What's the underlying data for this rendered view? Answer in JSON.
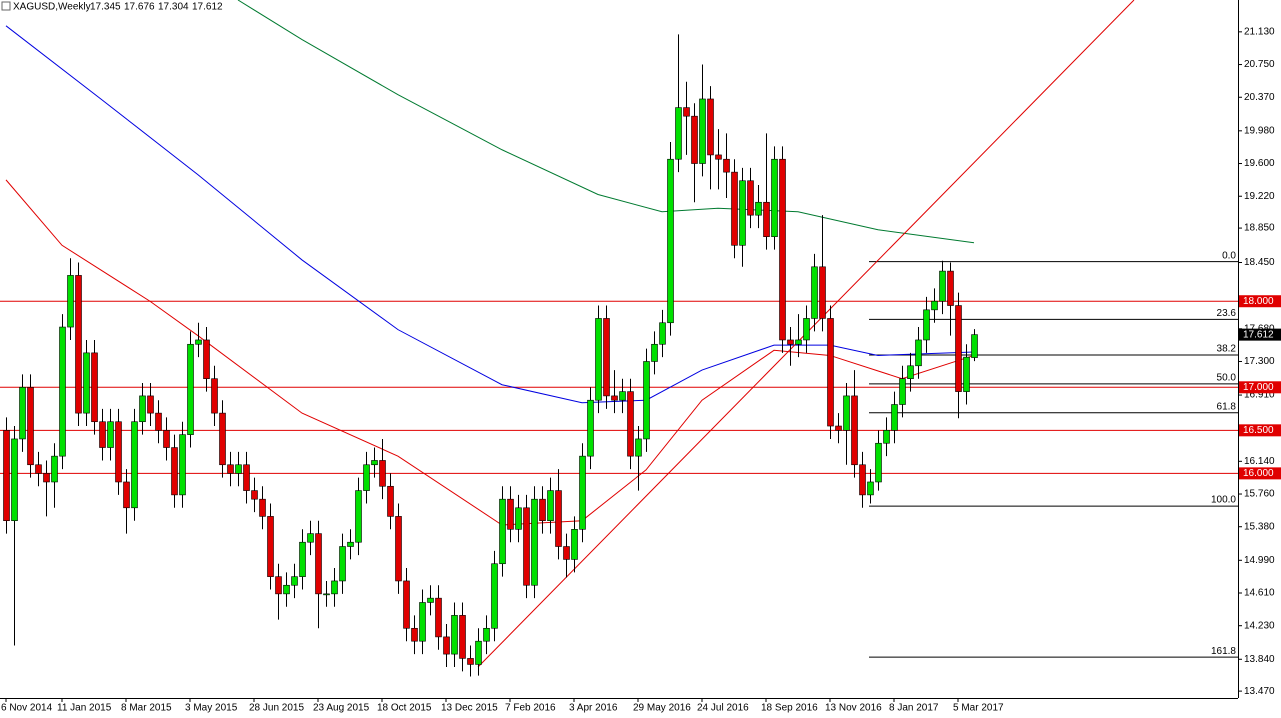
{
  "chart_data": {
    "type": "candlestick",
    "title": "XAGUSD,Weekly",
    "categories": [
      "6 Nov 2014",
      null,
      null,
      null,
      null,
      null,
      null,
      "11 Jan 2015",
      null,
      null,
      null,
      null,
      null,
      null,
      null,
      "8 Mar 2015",
      null,
      null,
      null,
      null,
      null,
      null,
      null,
      "3 May 2015",
      null,
      null,
      null,
      null,
      null,
      null,
      null,
      "28 Jun 2015",
      null,
      null,
      null,
      null,
      null,
      null,
      null,
      "23 Aug 2015",
      null,
      null,
      null,
      null,
      null,
      null,
      null,
      "18 Oct 2015",
      null,
      null,
      null,
      null,
      null,
      null,
      null,
      "13 Dec 2015",
      null,
      null,
      null,
      null,
      null,
      null,
      null,
      "7 Feb 2016",
      null,
      null,
      null,
      null,
      null,
      null,
      null,
      "3 Apr 2016",
      null,
      null,
      null,
      null,
      null,
      null,
      null,
      "29 May 2016",
      null,
      null,
      null,
      null,
      null,
      null,
      null,
      "24 Jul 2016",
      null,
      null,
      null,
      null,
      null,
      null,
      null,
      "18 Sep 2016",
      null,
      null,
      null,
      null,
      null,
      null,
      null,
      "13 Nov 2016",
      null,
      null,
      null,
      null,
      null,
      null,
      null,
      "8 Jan 2017",
      null,
      null,
      null,
      null,
      null,
      null,
      null,
      "5 Mar 2017",
      null,
      null
    ],
    "open": [
      16.5,
      15.45,
      16.4,
      17.0,
      16.1,
      16.0,
      15.9,
      16.2,
      17.7,
      18.3,
      16.7,
      17.4,
      16.6,
      16.3,
      16.6,
      15.9,
      15.6,
      16.6,
      16.9,
      16.7,
      16.5,
      16.3,
      15.75,
      16.45,
      17.5,
      17.55,
      17.1,
      16.7,
      16.1,
      16.0,
      16.1,
      15.8,
      15.7,
      15.5,
      14.8,
      14.6,
      14.7,
      14.8,
      15.2,
      15.3,
      14.6,
      14.6,
      14.75,
      15.15,
      15.2,
      15.8,
      16.1,
      16.15,
      15.85,
      15.5,
      14.75,
      14.2,
      14.05,
      14.5,
      14.55,
      14.1,
      13.9,
      14.35,
      13.85,
      13.78,
      14.05,
      14.2,
      14.95,
      15.7,
      15.35,
      15.6,
      14.7,
      15.7,
      15.45,
      15.8,
      15.15,
      15.0,
      15.35,
      16.2,
      16.85,
      17.8,
      16.9,
      16.85,
      16.95,
      16.2,
      16.4,
      17.3,
      17.5,
      17.75,
      19.65,
      20.25,
      20.15,
      19.6,
      20.35,
      19.7,
      19.65,
      19.5,
      18.65,
      19.4,
      19.0,
      19.15,
      18.75,
      19.65,
      17.55,
      17.5,
      17.55,
      17.8,
      18.4,
      17.8,
      16.55,
      16.5,
      16.9,
      16.1,
      15.75,
      15.9,
      16.35,
      16.5,
      16.8,
      17.1,
      17.25,
      17.55,
      17.9,
      18.0,
      18.35,
      17.95,
      16.95,
      17.345
    ],
    "high": [
      16.65,
      16.55,
      17.15,
      17.15,
      16.25,
      16.15,
      16.35,
      17.85,
      18.5,
      18.45,
      17.55,
      17.55,
      16.75,
      16.75,
      16.75,
      16.05,
      16.75,
      17.05,
      17.05,
      16.85,
      16.65,
      16.45,
      16.6,
      17.65,
      17.75,
      17.7,
      17.25,
      16.85,
      16.25,
      16.25,
      16.25,
      15.95,
      15.85,
      15.65,
      14.95,
      14.85,
      14.95,
      15.35,
      15.45,
      15.45,
      14.75,
      14.9,
      15.3,
      15.35,
      15.95,
      16.25,
      16.3,
      16.4,
      16.0,
      15.65,
      14.9,
      14.35,
      14.65,
      14.7,
      14.7,
      14.25,
      14.5,
      14.5,
      14.0,
      14.2,
      14.35,
      15.1,
      15.85,
      15.85,
      15.75,
      15.75,
      15.85,
      15.85,
      15.95,
      16.05,
      15.3,
      15.5,
      16.35,
      17.0,
      17.95,
      17.95,
      17.2,
      17.1,
      17.1,
      16.55,
      17.45,
      17.65,
      17.9,
      19.85,
      21.1,
      20.55,
      20.3,
      20.75,
      20.5,
      20.0,
      19.95,
      19.65,
      19.55,
      19.55,
      19.35,
      19.95,
      19.8,
      19.8,
      17.7,
      17.85,
      17.95,
      18.55,
      19.0,
      17.95,
      16.7,
      17.05,
      17.2,
      16.25,
      16.05,
      16.5,
      16.65,
      16.95,
      17.25,
      17.4,
      17.7,
      18.05,
      18.15,
      18.47,
      18.45,
      18.1,
      17.5,
      17.676
    ],
    "low": [
      15.3,
      14.0,
      16.25,
      15.95,
      15.85,
      15.5,
      15.6,
      16.05,
      17.55,
      16.55,
      16.55,
      16.45,
      16.15,
      16.15,
      15.75,
      15.3,
      15.45,
      16.45,
      16.55,
      16.35,
      16.15,
      15.6,
      15.6,
      16.3,
      17.35,
      16.95,
      16.55,
      15.95,
      15.85,
      15.85,
      15.65,
      15.55,
      15.35,
      14.65,
      14.3,
      14.45,
      14.55,
      14.65,
      15.05,
      14.2,
      14.45,
      14.45,
      14.6,
      15.0,
      15.05,
      15.65,
      15.95,
      15.7,
      15.35,
      14.6,
      14.05,
      13.9,
      13.9,
      14.35,
      13.95,
      13.75,
      13.75,
      13.7,
      13.64,
      13.65,
      13.9,
      14.05,
      14.8,
      15.2,
      15.2,
      14.55,
      14.55,
      15.3,
      15.3,
      15.0,
      14.79,
      14.85,
      15.2,
      16.05,
      16.7,
      16.75,
      16.7,
      16.7,
      16.05,
      15.8,
      16.25,
      17.15,
      17.35,
      17.6,
      19.5,
      19.7,
      19.15,
      19.45,
      19.3,
      19.3,
      19.2,
      18.5,
      18.4,
      18.85,
      18.85,
      18.6,
      18.6,
      17.4,
      17.25,
      17.35,
      17.4,
      17.65,
      17.65,
      16.4,
      16.35,
      16.1,
      15.95,
      15.6,
      15.65,
      15.8,
      16.2,
      16.35,
      16.65,
      16.95,
      17.1,
      17.4,
      17.75,
      17.85,
      17.6,
      16.64,
      16.8,
      17.304
    ],
    "close": [
      15.45,
      16.4,
      17.0,
      16.1,
      16.0,
      15.9,
      16.2,
      17.7,
      18.3,
      16.7,
      17.4,
      16.6,
      16.3,
      16.6,
      15.9,
      15.6,
      16.6,
      16.9,
      16.7,
      16.5,
      16.3,
      15.75,
      16.45,
      17.5,
      17.55,
      17.1,
      16.7,
      16.1,
      16.0,
      16.1,
      15.8,
      15.7,
      15.5,
      14.8,
      14.6,
      14.7,
      14.8,
      15.2,
      15.3,
      14.6,
      14.6,
      14.75,
      15.15,
      15.2,
      15.8,
      16.1,
      16.15,
      15.85,
      15.5,
      14.75,
      14.2,
      14.05,
      14.5,
      14.55,
      14.1,
      13.9,
      14.35,
      13.85,
      13.78,
      14.05,
      14.2,
      14.95,
      15.7,
      15.35,
      15.6,
      14.7,
      15.7,
      15.45,
      15.8,
      15.15,
      15.0,
      15.35,
      16.2,
      16.85,
      17.8,
      16.9,
      16.85,
      16.95,
      16.2,
      16.4,
      17.3,
      17.5,
      17.75,
      19.65,
      20.25,
      20.15,
      19.6,
      20.35,
      19.7,
      19.65,
      19.5,
      18.65,
      19.4,
      19.0,
      19.15,
      18.75,
      19.65,
      17.55,
      17.5,
      17.55,
      17.8,
      18.4,
      17.8,
      16.55,
      16.5,
      16.9,
      16.1,
      15.75,
      15.9,
      16.35,
      16.5,
      16.8,
      17.1,
      17.25,
      17.55,
      17.9,
      18.0,
      18.35,
      17.95,
      16.95,
      17.35,
      17.612
    ],
    "up_color": "#00e000",
    "down_color": "#e00000",
    "ylim": [
      13.39,
      21.5
    ],
    "yticks": [
      {
        "value": 21.13,
        "label": "21.130"
      },
      {
        "value": 20.75,
        "label": "20.750"
      },
      {
        "value": 20.37,
        "label": "20.370"
      },
      {
        "value": 19.98,
        "label": "19.980"
      },
      {
        "value": 19.6,
        "label": "19.600"
      },
      {
        "value": 19.22,
        "label": "19.220"
      },
      {
        "value": 18.85,
        "label": "18.850"
      },
      {
        "value": 18.45,
        "label": "18.450"
      },
      {
        "value": 17.68,
        "label": "17.680"
      },
      {
        "value": 17.3,
        "label": "17.300"
      },
      {
        "value": 16.91,
        "label": "16.910"
      },
      {
        "value": 16.14,
        "label": "16.140"
      },
      {
        "value": 15.76,
        "label": "15.760"
      },
      {
        "value": 15.38,
        "label": "15.380"
      },
      {
        "value": 14.99,
        "label": "14.990"
      },
      {
        "value": 14.61,
        "label": "14.610"
      },
      {
        "value": 14.23,
        "label": "14.230"
      },
      {
        "value": 13.84,
        "label": "13.840"
      },
      {
        "value": 13.47,
        "label": "13.470"
      }
    ],
    "levels": {
      "color": "#e00000",
      "lines": [
        {
          "value": 18,
          "label": "18.000"
        },
        {
          "value": 17,
          "label": "17.000"
        },
        {
          "value": 16.5,
          "label": "16.500"
        },
        {
          "value": 16,
          "label": "16.000"
        }
      ]
    },
    "moving_averages": [
      {
        "color": "#e00000",
        "x": [
          0,
          7,
          18,
          24,
          37,
          49,
          62,
          72,
          80,
          87,
          96,
          103,
          112,
          121
        ],
        "values": [
          19.41,
          18.65,
          18.0,
          17.6,
          16.7,
          16.2,
          15.4,
          15.45,
          16.04,
          16.85,
          17.43,
          17.37,
          17.1,
          17.37
        ]
      },
      {
        "color": "#0000e0",
        "x": [
          0,
          12,
          24,
          37,
          49,
          62,
          72,
          80,
          87,
          96,
          103,
          109,
          121
        ],
        "values": [
          21.2,
          20.34,
          19.47,
          18.48,
          17.67,
          17.03,
          16.82,
          16.85,
          17.2,
          17.49,
          17.49,
          17.37,
          17.41
        ]
      },
      {
        "color": "#007a30",
        "x": [
          29,
          37,
          49,
          62,
          74,
          82,
          89,
          99,
          109,
          121
        ],
        "values": [
          21.5,
          21.04,
          20.4,
          19.76,
          19.24,
          19.04,
          19.08,
          19.04,
          18.83,
          18.68
        ]
      }
    ],
    "trendline": {
      "color": "#e00000",
      "x": [
        59,
        141
      ],
      "values": [
        13.75,
        21.5
      ]
    },
    "fibonacci": {
      "high": 18.46,
      "low": 15.62,
      "levels": [
        {
          "value": 0,
          "label": "0.0"
        },
        {
          "value": 23.6,
          "label": "23.6"
        },
        {
          "value": 38.2,
          "label": "38.2"
        },
        {
          "value": 50,
          "label": "50.0"
        },
        {
          "value": 61.8,
          "label": "61.8"
        },
        {
          "value": 100,
          "label": "100.0"
        },
        {
          "value": 161.8,
          "label": "161.8"
        }
      ]
    }
  }
}
